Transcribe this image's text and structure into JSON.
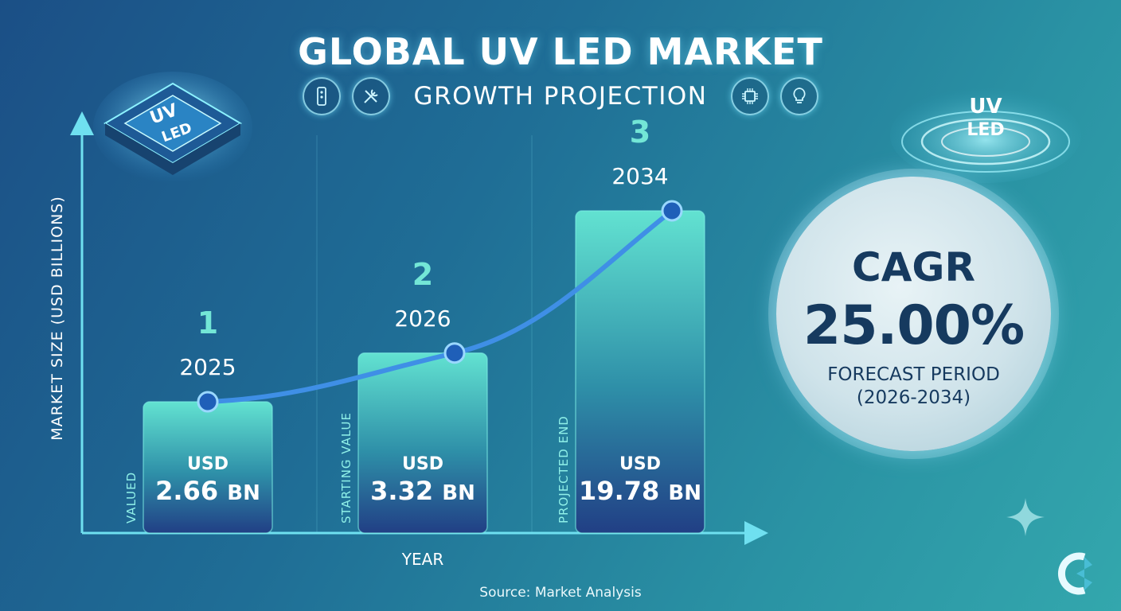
{
  "header": {
    "title": "GLOBAL UV LED MARKET",
    "subtitle": "GROWTH PROJECTION",
    "icons": [
      "remote-device-icon",
      "tools-icon",
      "chip-icon",
      "lightbulb-icon"
    ]
  },
  "chip_badges": {
    "left_line1": "UV",
    "left_line2": "LED",
    "right_line1": "UV",
    "right_line2": "LED"
  },
  "chart_data": {
    "type": "bar",
    "title": "GLOBAL UV LED MARKET",
    "subtitle": "GROWTH PROJECTION",
    "xlabel": "YEAR",
    "ylabel": "MARKET SIZE (USD BILLIONS)",
    "categories": [
      "2025",
      "2026",
      "2034"
    ],
    "step_numbers": [
      "1",
      "2",
      "3"
    ],
    "values": [
      2.66,
      3.32,
      19.78
    ],
    "value_labels": [
      {
        "currency": "USD",
        "amount": "2.66",
        "unit": "BN"
      },
      {
        "currency": "USD",
        "amount": "3.32",
        "unit": "BN"
      },
      {
        "currency": "USD",
        "amount": "19.78",
        "unit": "BN"
      }
    ],
    "bar_annotations": [
      "VALUED",
      "STARTING VALUE",
      "PROJECTED END"
    ],
    "trend_line": true,
    "colors": {
      "bar_top": "#5fe0cf",
      "bar_bottom": "#1f4a86",
      "line": "#3f8fe6",
      "marker": "#1f5fb8"
    }
  },
  "cagr": {
    "label": "CAGR",
    "value": "25.00%",
    "period_label": "FORECAST PERIOD",
    "period_years": "(2026-2034)"
  },
  "footer": {
    "source": "Source: Market Analysis"
  }
}
